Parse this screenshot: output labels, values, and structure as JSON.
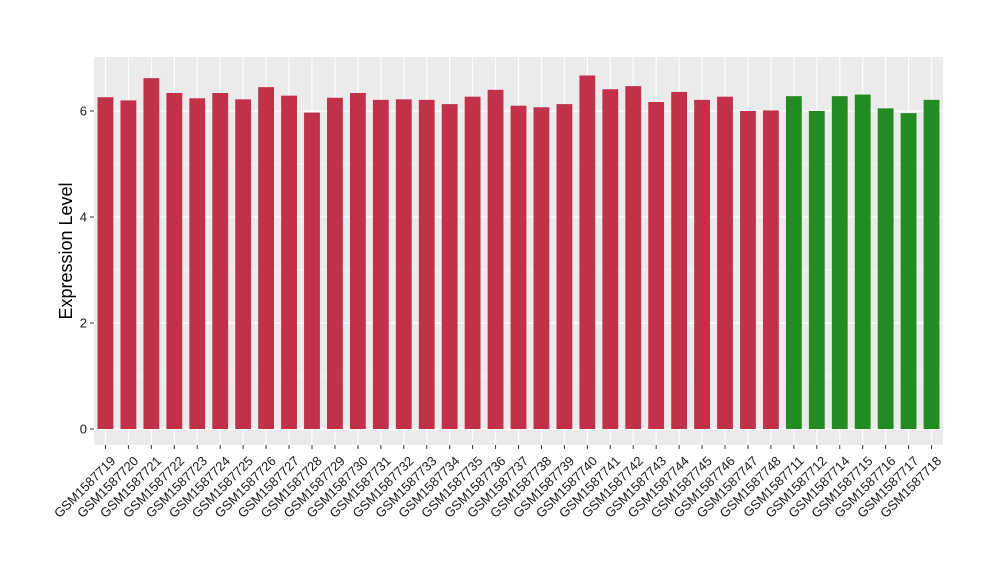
{
  "chart_data": {
    "type": "bar",
    "title": "",
    "xlabel": "",
    "ylabel": "Expression Level",
    "ylim": [
      0,
      7
    ],
    "yticks": [
      0,
      2,
      4,
      6
    ],
    "grid": true,
    "legend": "none",
    "categories": [
      "GSM1587719",
      "GSM1587720",
      "GSM1587721",
      "GSM1587722",
      "GSM1587723",
      "GSM1587724",
      "GSM1587725",
      "GSM1587726",
      "GSM1587727",
      "GSM1587728",
      "GSM1587729",
      "GSM1587730",
      "GSM1587731",
      "GSM1587732",
      "GSM1587733",
      "GSM1587734",
      "GSM1587735",
      "GSM1587736",
      "GSM1587737",
      "GSM1587738",
      "GSM1587739",
      "GSM1587740",
      "GSM1587741",
      "GSM1587742",
      "GSM1587743",
      "GSM1587744",
      "GSM1587745",
      "GSM1587746",
      "GSM1587747",
      "GSM1587748",
      "GSM1587711",
      "GSM1587712",
      "GSM1587714",
      "GSM1587715",
      "GSM1587716",
      "GSM1587717",
      "GSM1587718"
    ],
    "values": [
      6.26,
      6.2,
      6.62,
      6.34,
      6.24,
      6.34,
      6.22,
      6.45,
      6.29,
      5.97,
      6.25,
      6.34,
      6.21,
      6.22,
      6.21,
      6.13,
      6.27,
      6.4,
      6.1,
      6.07,
      6.13,
      6.67,
      6.41,
      6.47,
      6.17,
      6.36,
      6.21,
      6.27,
      6.0,
      6.01,
      6.28,
      6.0,
      6.28,
      6.31,
      6.05,
      5.96,
      6.21
    ],
    "bar_colors": [
      "#c1314a",
      "#c1314a",
      "#c1314a",
      "#c1314a",
      "#c1314a",
      "#c1314a",
      "#c1314a",
      "#c1314a",
      "#c1314a",
      "#c1314a",
      "#c1314a",
      "#c1314a",
      "#c1314a",
      "#c1314a",
      "#c1314a",
      "#c1314a",
      "#c1314a",
      "#c1314a",
      "#c1314a",
      "#c1314a",
      "#c1314a",
      "#c1314a",
      "#c1314a",
      "#c1314a",
      "#c1314a",
      "#c1314a",
      "#c1314a",
      "#c1314a",
      "#c1314a",
      "#c1314a",
      "#228b22",
      "#228b22",
      "#228b22",
      "#228b22",
      "#228b22",
      "#228b22",
      "#228b22"
    ],
    "panel_background": "#ebebeb",
    "gridline_color": "#ffffff"
  }
}
